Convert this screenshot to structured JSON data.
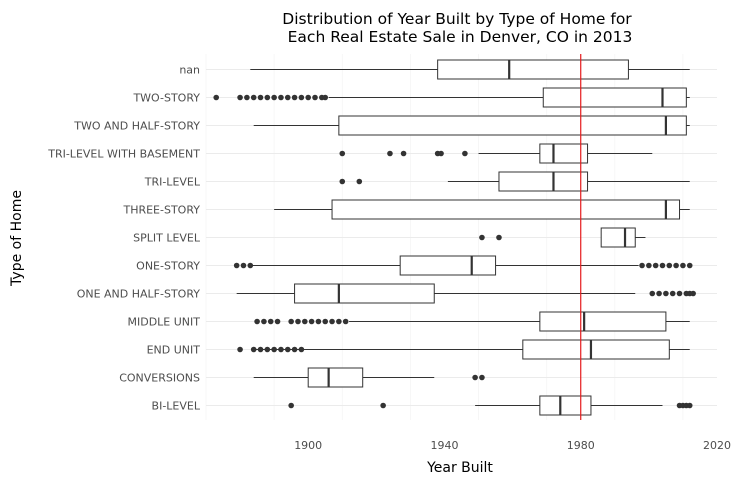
{
  "chart_data": {
    "type": "boxplot",
    "orientation": "horizontal",
    "title_lines": [
      "Distribution of Year Built by Type of Home for",
      "Each Real Estate Sale in Denver, CO in 2013"
    ],
    "xlabel": "Year Built",
    "ylabel": "Type of Home",
    "xlim": [
      1870,
      2020
    ],
    "xticks": [
      1900,
      1940,
      1980,
      2020
    ],
    "reference_line": {
      "x": 1980,
      "color": "#e41a1c"
    },
    "grid": true,
    "categories": [
      {
        "name": "BI-LEVEL",
        "min": 1949,
        "q1": 1968,
        "median": 1974,
        "q3": 1983,
        "max": 2004,
        "outliers": [
          1895,
          1922,
          2009,
          2010,
          2011,
          2012
        ]
      },
      {
        "name": "CONVERSIONS",
        "min": 1884,
        "q1": 1900,
        "median": 1906,
        "q3": 1916,
        "max": 1937,
        "outliers": [
          1949,
          1951
        ]
      },
      {
        "name": "END UNIT",
        "min": 1884,
        "q1": 1963,
        "median": 1983,
        "q3": 2006,
        "max": 2012,
        "outliers": [
          1880,
          1884,
          1886,
          1888,
          1890,
          1892,
          1894,
          1896,
          1898
        ]
      },
      {
        "name": "MIDDLE UNIT",
        "min": 1912,
        "q1": 1968,
        "median": 1981,
        "q3": 2005,
        "max": 2012,
        "outliers": [
          1885,
          1887,
          1889,
          1891,
          1895,
          1897,
          1899,
          1901,
          1903,
          1905,
          1907,
          1909,
          1911
        ]
      },
      {
        "name": "ONE AND HALF-STORY",
        "min": 1879,
        "q1": 1896,
        "median": 1909,
        "q3": 1937,
        "max": 1996,
        "outliers": [
          2001,
          2003,
          2005,
          2007,
          2009,
          2011,
          2012,
          2013
        ]
      },
      {
        "name": "ONE-STORY",
        "min": 1883,
        "q1": 1927,
        "median": 1948,
        "q3": 1955,
        "max": 1997,
        "outliers": [
          1879,
          1881,
          1883,
          1998,
          2000,
          2002,
          2004,
          2006,
          2008,
          2010,
          2012
        ]
      },
      {
        "name": "SPLIT LEVEL",
        "min": 1986,
        "q1": 1986,
        "median": 1993,
        "q3": 1996,
        "max": 1999,
        "outliers": [
          1951,
          1956
        ]
      },
      {
        "name": "THREE-STORY",
        "min": 1890,
        "q1": 1907,
        "median": 2005,
        "q3": 2009,
        "max": 2012,
        "outliers": []
      },
      {
        "name": "TRI-LEVEL",
        "min": 1941,
        "q1": 1956,
        "median": 1972,
        "q3": 1982,
        "max": 2012,
        "outliers": [
          1910,
          1915
        ]
      },
      {
        "name": "TRI-LEVEL WITH BASEMENT",
        "min": 1950,
        "q1": 1968,
        "median": 1972,
        "q3": 1982,
        "max": 2001,
        "outliers": [
          1910,
          1924,
          1928,
          1938,
          1939,
          1946
        ]
      },
      {
        "name": "TWO AND HALF-STORY",
        "min": 1884,
        "q1": 1909,
        "median": 2005,
        "q3": 2011,
        "max": 2012,
        "outliers": []
      },
      {
        "name": "TWO-STORY",
        "min": 1906,
        "q1": 1969,
        "median": 2004,
        "q3": 2011,
        "max": 2012,
        "outliers": [
          1873,
          1880,
          1882,
          1884,
          1886,
          1888,
          1890,
          1892,
          1894,
          1896,
          1898,
          1900,
          1902,
          1904,
          1905
        ]
      },
      {
        "name": "nan",
        "min": 1883,
        "q1": 1938,
        "median": 1959,
        "q3": 1994,
        "max": 2012,
        "outliers": []
      }
    ]
  }
}
